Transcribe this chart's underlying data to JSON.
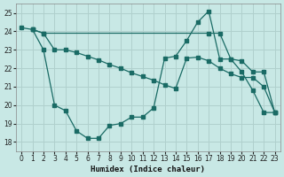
{
  "xlabel": "Humidex (Indice chaleur)",
  "bg_color": "#c8e8e5",
  "grid_color": "#b0d0cd",
  "line_color": "#1a6b65",
  "xlim": [
    -0.5,
    23.5
  ],
  "ylim": [
    17.5,
    25.5
  ],
  "xticks": [
    0,
    1,
    2,
    3,
    4,
    5,
    6,
    7,
    8,
    9,
    10,
    11,
    12,
    13,
    14,
    15,
    16,
    17,
    18,
    19,
    20,
    21,
    22,
    23
  ],
  "yticks": [
    18,
    19,
    20,
    21,
    22,
    23,
    24,
    25
  ],
  "line1_x": [
    0,
    1,
    2,
    3,
    4,
    5,
    6,
    7,
    8,
    9,
    10,
    11,
    12,
    13,
    14,
    15,
    16,
    17,
    18,
    19,
    20,
    21,
    22,
    23
  ],
  "line1_y": [
    24.2,
    24.1,
    23.0,
    20.0,
    19.7,
    18.6,
    18.2,
    18.2,
    18.9,
    19.0,
    19.35,
    19.35,
    19.85,
    22.55,
    22.65,
    23.5,
    24.5,
    25.1,
    22.5,
    22.5,
    21.8,
    20.8,
    19.6,
    19.6
  ],
  "line2_x": [
    1,
    2,
    17,
    18,
    19,
    20,
    21,
    22,
    23
  ],
  "line2_y": [
    24.1,
    23.9,
    23.9,
    23.9,
    22.5,
    22.4,
    21.8,
    21.8,
    19.6
  ],
  "line3_x": [
    1,
    2,
    3,
    4,
    5,
    6,
    7,
    8,
    9,
    10,
    11,
    12,
    13,
    14,
    15,
    16,
    17,
    18,
    19,
    20,
    21,
    22,
    23
  ],
  "line3_y": [
    24.1,
    23.9,
    23.0,
    23.0,
    22.85,
    22.65,
    22.45,
    22.2,
    22.0,
    21.75,
    21.55,
    21.35,
    21.1,
    20.9,
    22.55,
    22.6,
    22.4,
    22.0,
    21.7,
    21.5,
    21.5,
    21.0,
    19.6
  ]
}
